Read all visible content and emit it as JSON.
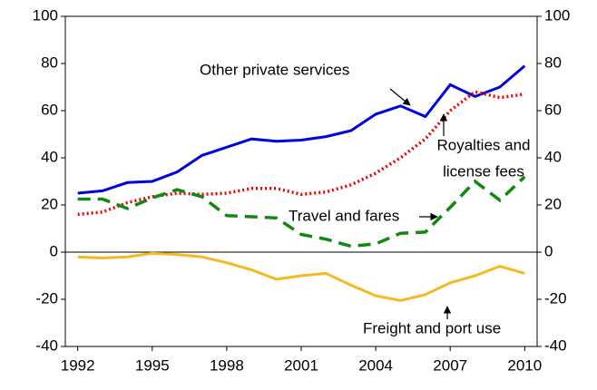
{
  "chart_data": {
    "type": "line",
    "x": [
      1992,
      1993,
      1994,
      1995,
      1996,
      1997,
      1998,
      1999,
      2000,
      2001,
      2002,
      2003,
      2004,
      2005,
      2006,
      2007,
      2008,
      2009,
      2010
    ],
    "series": [
      {
        "name": "Other private services",
        "color": "#0000dd",
        "dash": "solid",
        "values": [
          25,
          26,
          29.5,
          30,
          34,
          41,
          44.5,
          48,
          47,
          47.5,
          49,
          51.5,
          58.5,
          62,
          57.5,
          71,
          66,
          70,
          79
        ]
      },
      {
        "name": "Royalties and license fees",
        "color": "#ee0000",
        "dash": "dotted",
        "values": [
          16,
          17,
          21,
          23.5,
          25,
          24.5,
          25,
          27,
          27,
          24.5,
          25.5,
          28.5,
          33.5,
          40,
          48,
          60,
          68,
          65.5,
          67
        ]
      },
      {
        "name": "Travel and fares",
        "color": "#118811",
        "dash": "dashed",
        "values": [
          22.5,
          22.5,
          18.5,
          23,
          26.5,
          23.5,
          15.5,
          15,
          14.5,
          7.5,
          5.5,
          2.5,
          3.5,
          8,
          8.5,
          19,
          30,
          22,
          32
        ]
      },
      {
        "name": "Freight and port use",
        "color": "#f5b921",
        "dash": "solid",
        "values": [
          -2,
          -2.5,
          -2,
          -0.5,
          -1,
          -2,
          -4.5,
          -7.5,
          -11.5,
          -10,
          -9,
          -14,
          -18.5,
          -20.5,
          -18,
          -13,
          -10,
          -6,
          -9
        ]
      }
    ],
    "annotations": [
      {
        "lines": [
          "Other private services"
        ]
      },
      {
        "lines": [
          "Royalties and",
          "license fees"
        ]
      },
      {
        "lines": [
          "Travel and fares"
        ]
      },
      {
        "lines": [
          "Freight and port use"
        ]
      }
    ],
    "xlim": [
      1991.5,
      2010.5
    ],
    "xticks": [
      1992,
      1995,
      1998,
      2001,
      2004,
      2007,
      2010
    ],
    "ylim": [
      -40,
      100
    ],
    "yticks": [
      -40,
      -20,
      0,
      20,
      40,
      60,
      80,
      100
    ],
    "y2lim": [
      -40,
      100
    ],
    "y2ticks": [
      -40,
      -20,
      0,
      20,
      40,
      60,
      80,
      100
    ],
    "grid": false
  }
}
